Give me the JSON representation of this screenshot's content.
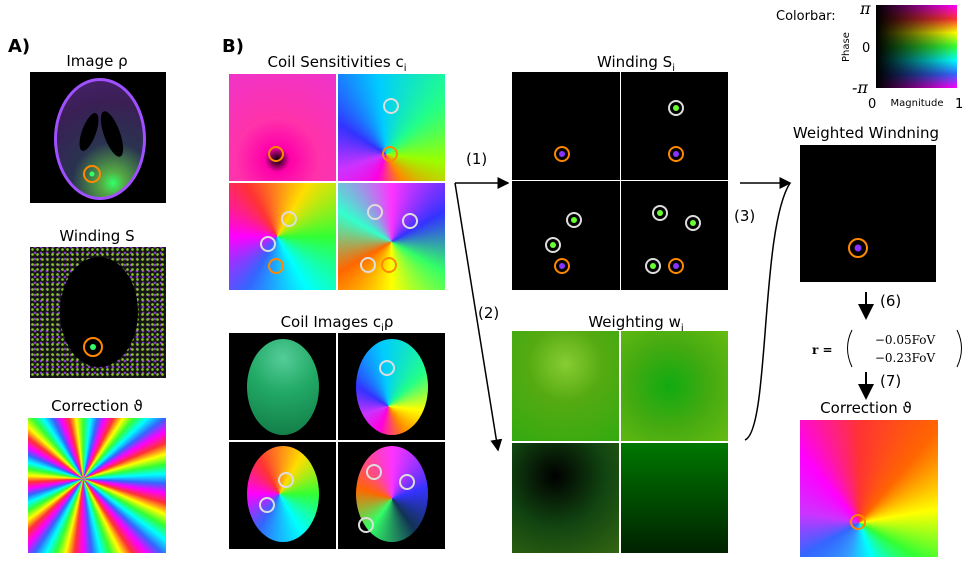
{
  "panel_a": {
    "label": "A)",
    "image_title": "Image ρ",
    "winding_title": "Winding S",
    "correction_title": "Correction ϑ"
  },
  "panel_b": {
    "label": "B)",
    "coil_sensitivities": {
      "text": "Coil Sensitivities c",
      "sub": "i"
    },
    "coil_images": {
      "text": "Coil Images c",
      "sub": "i",
      "suffix": "ρ"
    },
    "winding": {
      "text": "Winding S",
      "sub": "i"
    },
    "weighting": {
      "text": "Weighting w",
      "sub": "i"
    },
    "steps": [
      "(1)",
      "(2)",
      "(3)",
      "(6)",
      "(7)"
    ],
    "weighted_winding_title": "Weighted Windning",
    "correction_title": "Correction ϑ",
    "shift": {
      "label": "r =",
      "values": [
        "−0.05FoV",
        "−0.23FoV"
      ]
    }
  },
  "colorbar": {
    "label": "Colorbar:",
    "phase_axis": "Phase",
    "phase_ticks": [
      "π",
      "0",
      "-π"
    ],
    "magnitude_axis": "Magnitude",
    "magnitude_ticks": [
      "0",
      "1"
    ]
  }
}
